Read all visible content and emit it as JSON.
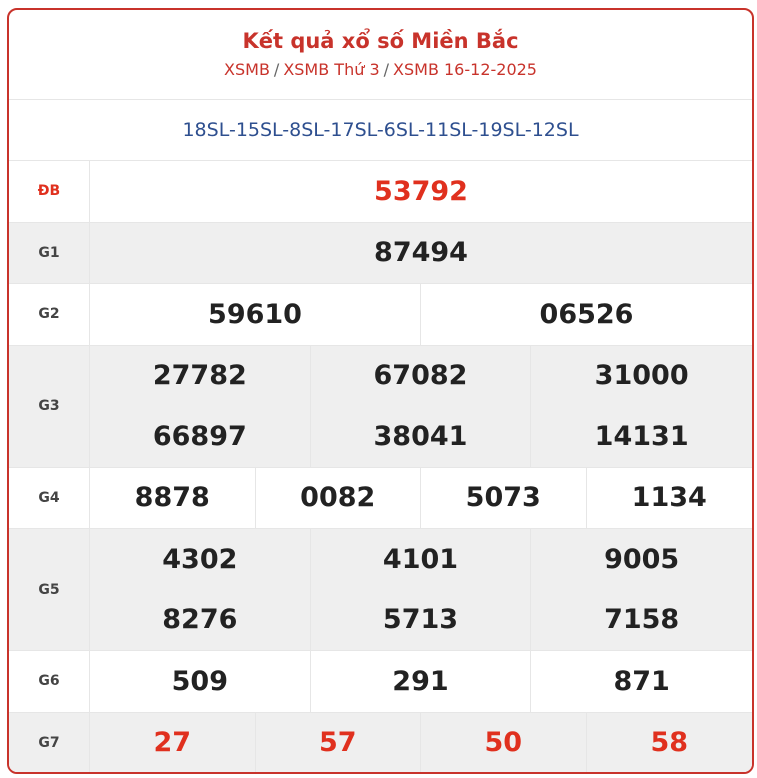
{
  "header": {
    "title": "Kết quả xổ số Miền Bắc",
    "crumb1": "XSMB",
    "crumb2": "XSMB Thứ 3",
    "crumb3": "XSMB 16-12-2025",
    "separator": "/"
  },
  "codes": "18SL-15SL-8SL-17SL-6SL-11SL-19SL-12SL",
  "prizes": {
    "db": {
      "label": "ĐB",
      "values": [
        "53792"
      ]
    },
    "g1": {
      "label": "G1",
      "values": [
        "87494"
      ]
    },
    "g2": {
      "label": "G2",
      "values": [
        "59610",
        "06526"
      ]
    },
    "g3": {
      "label": "G3",
      "values": [
        "27782",
        "67082",
        "31000",
        "66897",
        "38041",
        "14131"
      ]
    },
    "g4": {
      "label": "G4",
      "values": [
        "8878",
        "0082",
        "5073",
        "1134"
      ]
    },
    "g5": {
      "label": "G5",
      "values": [
        "4302",
        "4101",
        "9005",
        "8276",
        "5713",
        "7158"
      ]
    },
    "g6": {
      "label": "G6",
      "values": [
        "509",
        "291",
        "871"
      ]
    },
    "g7": {
      "label": "G7",
      "values": [
        "27",
        "57",
        "50",
        "58"
      ]
    }
  },
  "colors": {
    "accent": "#c8332b",
    "highlight": "#e0301e",
    "codes": "#2e4f8f",
    "alt_row": "#efefef"
  }
}
